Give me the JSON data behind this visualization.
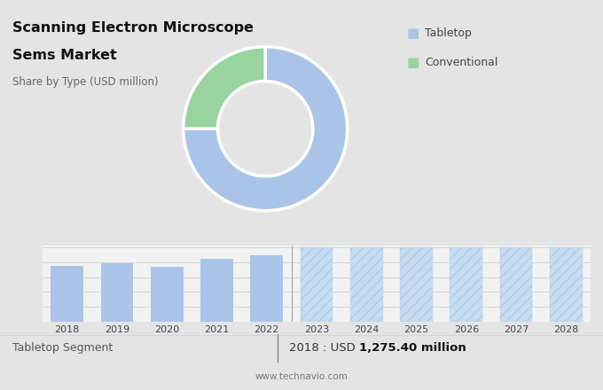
{
  "title_line1": "Scanning Electron Microscope",
  "title_line2": "Sems Market",
  "subtitle": "Share by Type (USD million)",
  "pie_values": [
    75,
    25
  ],
  "pie_colors": [
    "#aac4e8",
    "#98d4a0"
  ],
  "pie_labels": [
    "Tabletop",
    "Conventional"
  ],
  "bar_years_solid": [
    2018,
    2019,
    2020,
    2021,
    2022
  ],
  "bar_values_solid": [
    1275,
    1340,
    1260,
    1430,
    1510
  ],
  "bar_years_hatched": [
    2023,
    2024,
    2025,
    2026,
    2027,
    2028
  ],
  "bar_color_solid": "#aac4e8",
  "bar_color_hatched": "#c8dcf0",
  "hatch_pattern": "///",
  "bg_top": "#e4e4e4",
  "bg_bottom": "#f2f2f2",
  "bg_footer": "#f2f2f2",
  "footer_left": "Tabletop Segment",
  "footer_right_normal": "2018 : USD ",
  "footer_right_bold": "1,275.40 million",
  "footer_url": "www.technavio.com",
  "legend_labels": [
    "Tabletop",
    "Conventional"
  ],
  "legend_colors": [
    "#aac4e8",
    "#98d4a0"
  ],
  "hatched_bar_height": 1700
}
